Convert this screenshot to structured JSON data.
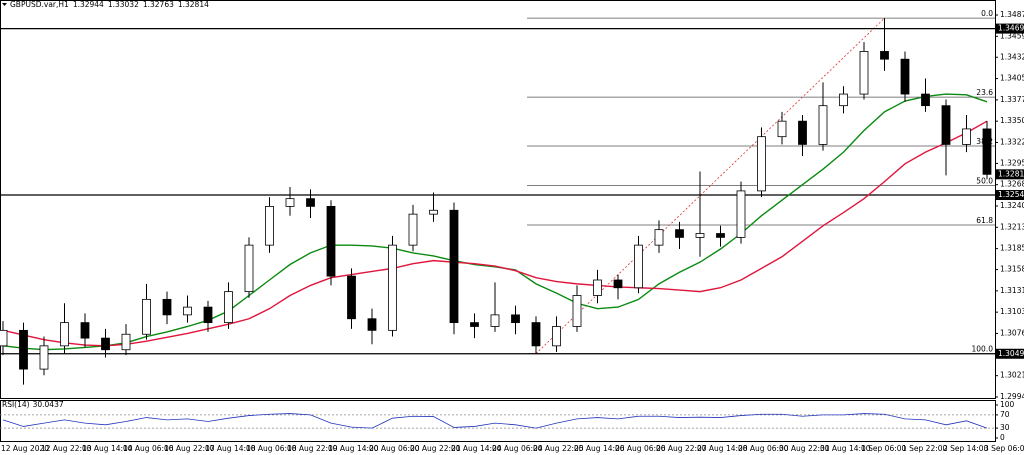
{
  "chart_data": {
    "type": "candlestick",
    "title": "GBPUSD.var,H1",
    "quote": [
      1.32944,
      1.33032,
      1.32763,
      1.32814
    ],
    "categories": [
      "12 Aug 2020",
      null,
      "12 Aug 22:00",
      null,
      "13 Aug 14:00",
      null,
      "14 Aug 06:00",
      null,
      "16 Aug 22:00",
      null,
      "17 Aug 14:00",
      null,
      "18 Aug 06:00",
      null,
      "18 Aug 22:00",
      null,
      "19 Aug 14:00",
      null,
      "20 Aug 06:00",
      null,
      "20 Aug 22:00",
      null,
      "21 Aug 14:00",
      null,
      "24 Aug 06:00",
      null,
      "24 Aug 22:00",
      null,
      "25 Aug 14:00",
      null,
      "26 Aug 06:00",
      null,
      "26 Aug 22:00",
      null,
      "27 Aug 14:00",
      null,
      "28 Aug 06:00",
      null,
      "30 Aug 22:00",
      null,
      "31 Aug 14:00",
      null,
      "1 Sep 06:00",
      null,
      "1 Sep 22:00",
      null,
      "2 Sep 14:00",
      null,
      "3 Sep 06:00"
    ],
    "open": [
      1.306,
      1.308,
      1.303,
      1.306,
      1.309,
      1.307,
      1.3055,
      1.3075,
      1.312,
      1.31,
      1.311,
      1.309,
      1.313,
      1.319,
      1.324,
      1.325,
      1.324,
      1.315,
      1.3095,
      1.308,
      1.319,
      1.323,
      1.3235,
      1.309,
      1.3085,
      1.31,
      1.309,
      1.306,
      1.3085,
      1.3125,
      1.3145,
      1.3135,
      1.319,
      1.321,
      1.32,
      1.3205,
      1.32,
      1.326,
      1.333,
      1.335,
      1.332,
      1.337,
      1.3385,
      1.344,
      1.343,
      1.3385,
      1.337,
      1.332,
      1.334
    ],
    "high": [
      1.3092,
      1.309,
      1.3072,
      1.3115,
      1.3102,
      1.3082,
      1.3088,
      1.314,
      1.313,
      1.3125,
      1.3118,
      1.3142,
      1.32,
      1.3252,
      1.3265,
      1.3262,
      1.3248,
      1.316,
      1.3108,
      1.3202,
      1.3242,
      1.3258,
      1.3245,
      1.3102,
      1.3142,
      1.3112,
      1.3098,
      1.3098,
      1.3138,
      1.3158,
      1.3152,
      1.3202,
      1.3222,
      1.322,
      1.3285,
      1.3215,
      1.3272,
      1.3342,
      1.3362,
      1.3358,
      1.34,
      1.3395,
      1.3452,
      1.3483,
      1.344,
      1.3405,
      1.3378,
      1.3358,
      1.335
    ],
    "low": [
      1.3048,
      1.301,
      1.3022,
      1.305,
      1.3058,
      1.3045,
      1.3048,
      1.3068,
      1.3088,
      1.309,
      1.3078,
      1.3082,
      1.3122,
      1.318,
      1.3228,
      1.3225,
      1.3138,
      1.3082,
      1.3062,
      1.3072,
      1.3182,
      1.322,
      1.3075,
      1.307,
      1.3078,
      1.3075,
      1.305,
      1.3052,
      1.3078,
      1.3115,
      1.312,
      1.3128,
      1.318,
      1.3185,
      1.3175,
      1.3188,
      1.3192,
      1.3252,
      1.332,
      1.3305,
      1.3312,
      1.336,
      1.3378,
      1.3415,
      1.3375,
      1.3362,
      1.328,
      1.331,
      1.3275
    ],
    "close": [
      1.308,
      1.303,
      1.306,
      1.309,
      1.307,
      1.3055,
      1.3075,
      1.312,
      1.31,
      1.311,
      1.309,
      1.313,
      1.319,
      1.324,
      1.325,
      1.324,
      1.315,
      1.3095,
      1.308,
      1.319,
      1.323,
      1.3235,
      1.309,
      1.3085,
      1.31,
      1.309,
      1.306,
      1.3085,
      1.3125,
      1.3145,
      1.3135,
      1.319,
      1.321,
      1.32,
      1.3205,
      1.32,
      1.326,
      1.333,
      1.335,
      1.332,
      1.337,
      1.3385,
      1.344,
      1.343,
      1.3385,
      1.337,
      1.332,
      1.334,
      1.32814
    ],
    "overlays": [
      {
        "color": "#0b8a12",
        "values": [
          1.306,
          1.3057,
          1.3055,
          1.3056,
          1.3058,
          1.306,
          1.3064,
          1.3072,
          1.3078,
          1.3085,
          1.3093,
          1.3105,
          1.3125,
          1.3145,
          1.3165,
          1.318,
          1.319,
          1.319,
          1.3189,
          1.3186,
          1.318,
          1.3176,
          1.317,
          1.3165,
          1.3162,
          1.3158,
          1.314,
          1.3128,
          1.3115,
          1.3108,
          1.311,
          1.312,
          1.314,
          1.3155,
          1.3168,
          1.3185,
          1.3205,
          1.3228,
          1.3248,
          1.3268,
          1.3288,
          1.331,
          1.3338,
          1.3362,
          1.3376,
          1.3382,
          1.3385,
          1.3384,
          1.3375
        ]
      },
      {
        "color": "#e0153c",
        "values": [
          1.308,
          1.3074,
          1.3068,
          1.3064,
          1.3061,
          1.306,
          1.3062,
          1.3066,
          1.3071,
          1.3076,
          1.3082,
          1.3088,
          1.3095,
          1.3108,
          1.3125,
          1.3138,
          1.3148,
          1.3152,
          1.3156,
          1.316,
          1.3166,
          1.317,
          1.3168,
          1.3166,
          1.3163,
          1.3157,
          1.3148,
          1.3143,
          1.314,
          1.3138,
          1.3136,
          1.3135,
          1.3134,
          1.3132,
          1.313,
          1.3135,
          1.3145,
          1.316,
          1.3175,
          1.3195,
          1.3215,
          1.3232,
          1.325,
          1.3272,
          1.3295,
          1.331,
          1.3322,
          1.3335,
          1.335
        ]
      }
    ],
    "levels": [
      1.34695,
      1.32547,
      1.30498
    ],
    "fibonacci": {
      "anchors": [
        26,
        43
      ],
      "levels": [
        {
          "label": "0.0",
          "price": 1.3483
        },
        {
          "label": "23.6",
          "price": 1.3381
        },
        {
          "label": "38.2",
          "price": 1.3318
        },
        {
          "label": "50.0",
          "price": 1.3267
        },
        {
          "label": "61.8",
          "price": 1.3216
        },
        {
          "label": "100.0",
          "price": 1.305
        }
      ]
    },
    "ylim": [
      1.29927,
      1.35064
    ],
    "yticks": [
      {
        "value": 1.3487,
        "label": "1.34870"
      },
      1.34595,
      1.34325,
      {
        "value": 1.3405,
        "label": "1.34050"
      },
      1.33775,
      {
        "value": 1.335,
        "label": "1.33500"
      },
      1.33225,
      1.32955,
      {
        "value": 1.3268,
        "label": "1.32680"
      },
      1.32405,
      {
        "value": 1.3213,
        "label": "1.32130"
      },
      1.31855,
      1.31585,
      {
        "value": 1.3131,
        "label": "1.31310"
      },
      1.31035,
      {
        "value": 1.3076,
        "label": "1.30760"
      },
      1.30215,
      {
        "value": 1.2994,
        "label": "1.29940"
      }
    ],
    "rsi": {
      "title": "RSI(14)",
      "color": "#2233bb",
      "values": [
        55,
        35,
        45,
        55,
        45,
        40,
        50,
        62,
        55,
        58,
        50,
        60,
        68,
        72,
        74,
        70,
        45,
        33,
        30,
        60,
        66,
        65,
        32,
        35,
        45,
        40,
        30,
        45,
        58,
        62,
        58,
        66,
        66,
        62,
        63,
        62,
        68,
        72,
        72,
        66,
        70,
        70,
        74,
        72,
        58,
        55,
        40,
        52,
        30.0437
      ],
      "ylim": [
        0,
        100
      ],
      "yticks": [
        100,
        70,
        30,
        0
      ],
      "levels": [
        70,
        30
      ]
    }
  }
}
